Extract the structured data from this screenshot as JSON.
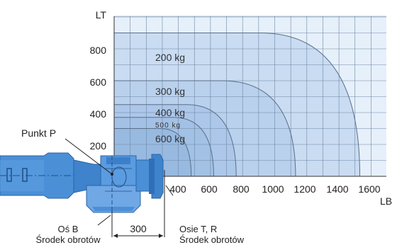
{
  "chart_data": {
    "type": "diagram",
    "y_axis": {
      "label": "LT",
      "ticks": [
        "200",
        "400",
        "600",
        "800"
      ]
    },
    "x_axis": {
      "label": "LB",
      "ticks": [
        "400",
        "600",
        "800",
        "1000",
        "1200",
        "1400",
        "1600"
      ]
    },
    "zones": [
      {
        "label": "200 kg",
        "lt_max": 900,
        "lb_max": 1630
      },
      {
        "label": "300 kg",
        "lt_max": 600,
        "lb_max": 1230
      },
      {
        "label": "400 kg",
        "lt_max": 450,
        "lb_max": 860
      },
      {
        "label": "500 kg",
        "lt_max": 370,
        "lb_max": 720
      },
      {
        "label": "600 kg",
        "lt_max": 300,
        "lb_max": 580
      }
    ]
  },
  "labels": {
    "point_p": "Punkt P",
    "dimension": "300",
    "axis_b_line1": "Oś B",
    "axis_b_line2": "Środek obrotów",
    "axis_tr_line1": "Osie T, R",
    "axis_tr_line2": "Środek obrotów"
  }
}
